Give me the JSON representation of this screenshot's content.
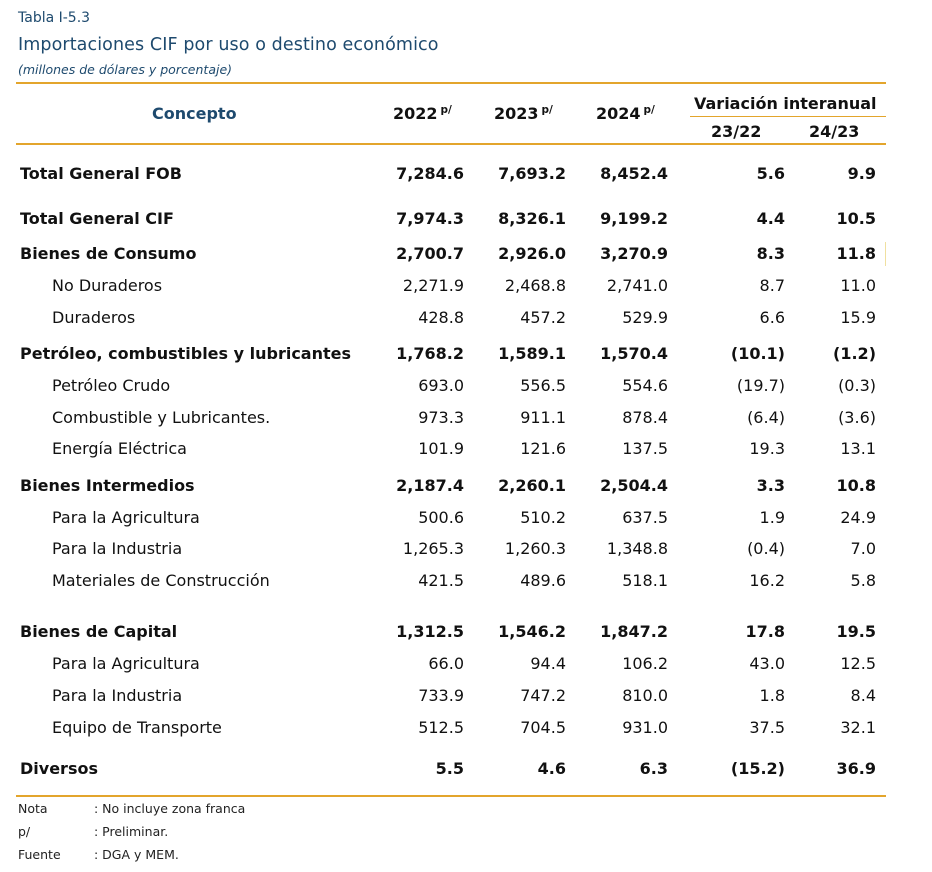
{
  "header": {
    "table_label": "Tabla I-5.3",
    "title": "Importaciones CIF por uso o destino económico",
    "subtitle": "(millones de dólares y porcentaje)"
  },
  "columns": {
    "concept": "Concepto",
    "y2022": "2022",
    "y2023": "2023",
    "y2024": "2024",
    "prelim_mark": "p/",
    "variation": "Variación interanual",
    "var1": "23/22",
    "var2": "24/23"
  },
  "rows": [
    {
      "label": "Total General FOB",
      "v2022": "7,284.6",
      "v2023": "7,693.2",
      "v2024": "8,452.4",
      "var1": "5.6",
      "var2": "9.9"
    },
    {
      "label": "Total General CIF",
      "v2022": "7,974.3",
      "v2023": "8,326.1",
      "v2024": "9,199.2",
      "var1": "4.4",
      "var2": "10.5"
    },
    {
      "label": "Bienes de Consumo",
      "v2022": "2,700.7",
      "v2023": "2,926.0",
      "v2024": "3,270.9",
      "var1": "8.3",
      "var2": "11.8"
    },
    {
      "label": "No Duraderos",
      "v2022": "2,271.9",
      "v2023": "2,468.8",
      "v2024": "2,741.0",
      "var1": "8.7",
      "var2": "11.0"
    },
    {
      "label": "Duraderos",
      "v2022": "428.8",
      "v2023": "457.2",
      "v2024": "529.9",
      "var1": "6.6",
      "var2": "15.9"
    },
    {
      "label": "Petróleo, combustibles y lubricantes",
      "v2022": "1,768.2",
      "v2023": "1,589.1",
      "v2024": "1,570.4",
      "var1": "(10.1)",
      "var2": "(1.2)"
    },
    {
      "label": "Petróleo Crudo",
      "v2022": "693.0",
      "v2023": "556.5",
      "v2024": "554.6",
      "var1": "(19.7)",
      "var2": "(0.3)"
    },
    {
      "label": "Combustible  y Lubricantes.",
      "v2022": "973.3",
      "v2023": "911.1",
      "v2024": "878.4",
      "var1": "(6.4)",
      "var2": "(3.6)"
    },
    {
      "label": "Energía Eléctrica",
      "v2022": "101.9",
      "v2023": "121.6",
      "v2024": "137.5",
      "var1": "19.3",
      "var2": "13.1"
    },
    {
      "label": "Bienes Intermedios",
      "v2022": "2,187.4",
      "v2023": "2,260.1",
      "v2024": "2,504.4",
      "var1": "3.3",
      "var2": "10.8"
    },
    {
      "label": "Para la Agricultura",
      "v2022": "500.6",
      "v2023": "510.2",
      "v2024": "637.5",
      "var1": "1.9",
      "var2": "24.9"
    },
    {
      "label": "Para la Industria",
      "v2022": "1,265.3",
      "v2023": "1,260.3",
      "v2024": "1,348.8",
      "var1": "(0.4)",
      "var2": "7.0"
    },
    {
      "label": "Materiales de Construcción",
      "v2022": "421.5",
      "v2023": "489.6",
      "v2024": "518.1",
      "var1": "16.2",
      "var2": "5.8"
    },
    {
      "label": "Bienes de Capital",
      "v2022": "1,312.5",
      "v2023": "1,546.2",
      "v2024": "1,847.2",
      "var1": "17.8",
      "var2": "19.5"
    },
    {
      "label": "Para la Agricultura",
      "v2022": "66.0",
      "v2023": "94.4",
      "v2024": "106.2",
      "var1": "43.0",
      "var2": "12.5"
    },
    {
      "label": "Para la Industria",
      "v2022": "733.9",
      "v2023": "747.2",
      "v2024": "810.0",
      "var1": "1.8",
      "var2": "8.4"
    },
    {
      "label": "Equipo de Transporte",
      "v2022": "512.5",
      "v2023": "704.5",
      "v2024": "931.0",
      "var1": "37.5",
      "var2": "32.1"
    },
    {
      "label": "Diversos",
      "v2022": "5.5",
      "v2023": "4.6",
      "v2024": "6.3",
      "var1": "(15.2)",
      "var2": "36.9"
    }
  ],
  "notes": [
    {
      "key": "Nota",
      "text": ": No incluye zona franca"
    },
    {
      "key": "p/",
      "text": ": Preliminar."
    },
    {
      "key": "Fuente",
      "text": ": DGA y MEM."
    }
  ],
  "colors": {
    "accent_rule": "#e3a52c",
    "title_blue": "#1e4a6e"
  }
}
